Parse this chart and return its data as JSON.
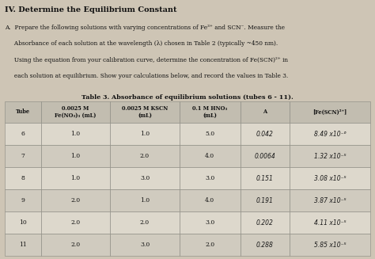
{
  "title": "IV. Determine the Equilibrium Constant",
  "para_lines": [
    "A.  Prepare the following solutions with varying concentrations of Fe³⁺ and SCN⁻. Measure the",
    "     Absorbance of each solution at the wavelength (λ) chosen in Table 2 (typically ~450 nm).",
    "     Using the equation from your calibration curve, determine the concentration of Fe(SCN)²⁺ in",
    "     each solution at equilibrium. Show your calculations below, and record the values in Table 3."
  ],
  "table_title": "Table 3. Absorbance of equilibrium solutions (tubes 6 - 11).",
  "col_headers": [
    "Tube",
    "0.0025 M\nFe(NO₃)₃ (mL)",
    "0.0025 M KSCN\n(mL)",
    "0.1 M HNO₃\n(mL)",
    "A",
    "[Fe(SCN)²⁺]"
  ],
  "rows": [
    [
      "6",
      "1.0",
      "1.0",
      "5.0",
      "0.042",
      "8.49 x10⁻⁶"
    ],
    [
      "7",
      "1.0",
      "2.0",
      "4.0",
      "0.0064",
      "1.32 x10⁻⁵"
    ],
    [
      "8",
      "1.0",
      "3.0",
      "3.0",
      "0.151",
      "3.08 x10⁻⁵"
    ],
    [
      "9",
      "2.0",
      "1.0",
      "4.0",
      "0.191",
      "3.87 x10⁻⁵"
    ],
    [
      "10",
      "2.0",
      "2.0",
      "3.0",
      "0.202",
      "4.11 x10⁻⁵"
    ],
    [
      "11",
      "2.0",
      "3.0",
      "2.0",
      "0.288",
      "5.85 x10⁻⁵"
    ]
  ],
  "bg_color": "#cec5b5",
  "cell_bg": "#ddd8cc",
  "header_bg": "#c2bdb0",
  "alt_cell_bg": "#d0cbbf",
  "text_color": "#111111",
  "hw_color": "#1a1a1a",
  "border_color": "#888880"
}
